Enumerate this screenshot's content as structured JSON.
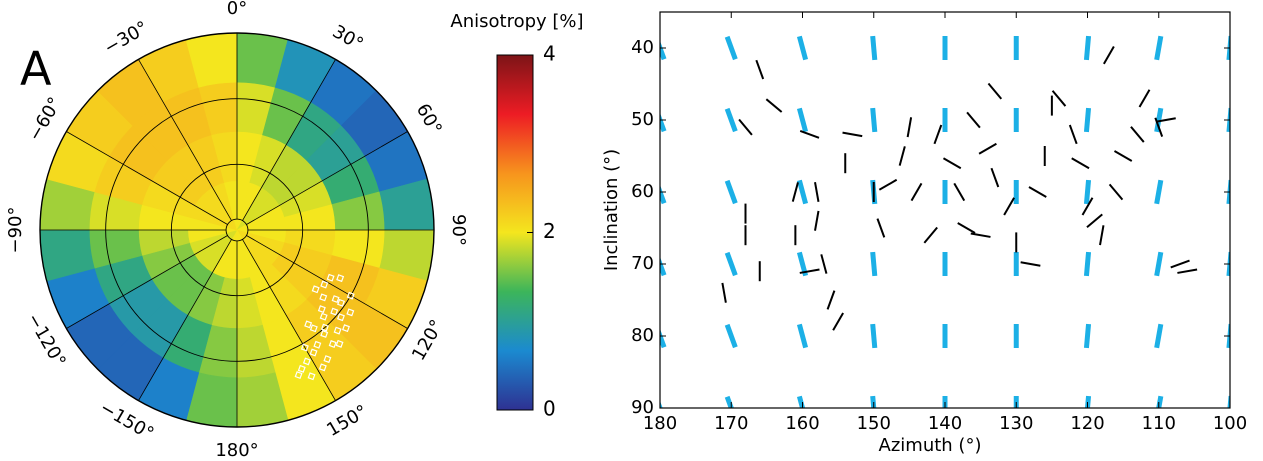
{
  "chart_data": [
    {
      "type": "polar_map",
      "panel_label": "A",
      "colorbar_title": "Anisotropy [%]",
      "clim": [
        0,
        4
      ],
      "cticks": [
        0,
        2,
        4
      ],
      "colormap": [
        "#2e3192",
        "#1b8ad0",
        "#3cb55a",
        "#f4e61e",
        "#f7941d",
        "#ed1c24",
        "#7d1417"
      ],
      "rlim": [
        0,
        90
      ],
      "rings": [
        5,
        30,
        60,
        90
      ],
      "azticks": [
        {
          "value": 0,
          "label": "0°"
        },
        {
          "value": 30,
          "label": "30°"
        },
        {
          "value": 60,
          "label": "60°"
        },
        {
          "value": 90,
          "label": "90°"
        },
        {
          "value": 120,
          "label": "120°"
        },
        {
          "value": 150,
          "label": "150°"
        },
        {
          "value": 180,
          "label": "180°"
        },
        {
          "value": -150,
          "label": "−150°"
        },
        {
          "value": -120,
          "label": "−120°"
        },
        {
          "value": -90,
          "label": "−90°"
        },
        {
          "value": -60,
          "label": "−60°"
        },
        {
          "value": -30,
          "label": "−30°"
        }
      ],
      "field": {
        "azimuth_edges": [
          -180,
          -165,
          -150,
          -135,
          -120,
          -105,
          -90,
          -75,
          -60,
          -45,
          -30,
          -15,
          0,
          15,
          30,
          45,
          60,
          75,
          90,
          105,
          120,
          135,
          150,
          165,
          180
        ],
        "inclination_edges": [
          0,
          22.5,
          45,
          67.5,
          90
        ],
        "values": [
          [
            2.0,
            2.0,
            1.9,
            1.9,
            1.9,
            2.0,
            2.0,
            2.1,
            2.1,
            2.1,
            2.1,
            2.0,
            2.0,
            2.0,
            1.9,
            1.9,
            2.0,
            2.0,
            2.0,
            2.1,
            2.1,
            2.1,
            2.0,
            2.0
          ],
          [
            1.8,
            1.6,
            1.5,
            1.5,
            1.6,
            1.8,
            2.0,
            2.1,
            2.2,
            2.2,
            2.2,
            2.1,
            2.0,
            1.9,
            1.8,
            1.8,
            1.9,
            2.0,
            2.1,
            2.2,
            2.2,
            2.1,
            2.0,
            1.9
          ],
          [
            1.6,
            1.2,
            0.9,
            0.9,
            1.1,
            1.5,
            1.9,
            2.2,
            2.3,
            2.3,
            2.3,
            2.2,
            1.9,
            1.5,
            1.1,
            1.0,
            1.2,
            1.6,
            2.0,
            2.3,
            2.3,
            2.2,
            2.0,
            1.8
          ],
          [
            1.5,
            0.6,
            0.4,
            0.4,
            0.6,
            1.1,
            1.7,
            2.1,
            2.2,
            2.3,
            2.2,
            2.0,
            1.5,
            0.8,
            0.5,
            0.4,
            0.5,
            1.0,
            1.8,
            2.2,
            2.3,
            2.2,
            2.0,
            1.7
          ]
        ]
      },
      "points": {
        "color": "#ffffff",
        "azimuth": [
          117,
          115,
          122,
          125,
          128,
          130,
          133,
          127,
          120,
          135,
          138,
          140,
          142,
          145,
          148,
          150,
          152,
          155,
          145,
          140,
          135,
          130,
          125,
          148,
          153,
          157,
          143,
          138,
          132,
          126
        ],
        "inclination": [
          48,
          52,
          47,
          55,
          50,
          58,
          53,
          45,
          60,
          56,
          60,
          62,
          57,
          64,
          66,
          62,
          68,
          70,
          72,
          68,
          65,
          62,
          58,
          74,
          75,
          72,
          54,
          70,
          67,
          64
        ]
      }
    },
    {
      "type": "stick",
      "xlabel": "Azimuth (°)",
      "ylabel": "Inclination (°)",
      "xlim": [
        180,
        100
      ],
      "ylim": [
        35,
        90
      ],
      "xticks": [
        180,
        170,
        160,
        150,
        140,
        130,
        120,
        110,
        100
      ],
      "yticks": [
        40,
        50,
        60,
        70,
        80,
        90
      ],
      "predicted": {
        "color": "#1cb0e6",
        "azimuth": [
          180,
          170,
          160,
          150,
          140,
          130,
          120,
          110,
          100
        ],
        "inclination": [
          40,
          50,
          60,
          70,
          80,
          90
        ],
        "orientation": [
          -20,
          -20,
          -15,
          -5,
          0,
          0,
          5,
          10,
          5
        ]
      },
      "observed": {
        "color": "#000000",
        "azimuth": [
          166,
          164,
          168,
          159,
          161,
          168,
          168,
          171,
          166,
          161,
          158,
          157,
          159,
          156,
          155,
          158,
          154,
          153,
          150,
          149,
          146,
          144,
          142,
          141,
          139,
          138,
          137,
          135,
          136,
          134,
          133,
          131,
          130,
          128,
          127,
          126,
          125,
          124,
          122,
          121,
          120,
          119,
          118,
          116,
          115,
          113,
          112,
          110,
          109,
          107,
          106,
          117,
          133,
          145,
          148
        ],
        "inclination": [
          43,
          48,
          51,
          52,
          60,
          63,
          66,
          74,
          71,
          66,
          64,
          70,
          71,
          75,
          78,
          60,
          56,
          52,
          60,
          65,
          55,
          60,
          66,
          52,
          56,
          60,
          65,
          66,
          50,
          54,
          58,
          62,
          67,
          70,
          60,
          55,
          48,
          47,
          52,
          56,
          62,
          64,
          66,
          60,
          55,
          52,
          47,
          51,
          50,
          70,
          71,
          41,
          46,
          51,
          59
        ],
        "orientation": [
          -20,
          -50,
          -40,
          -70,
          15,
          0,
          0,
          -10,
          0,
          0,
          10,
          -15,
          80,
          20,
          30,
          -10,
          0,
          -80,
          0,
          -20,
          15,
          30,
          40,
          20,
          -60,
          -30,
          -60,
          -80,
          -40,
          60,
          -20,
          30,
          0,
          -80,
          -60,
          0,
          0,
          -40,
          -20,
          -60,
          30,
          50,
          10,
          -40,
          -60,
          -40,
          30,
          -20,
          80,
          70,
          80,
          30,
          -40,
          10,
          60
        ]
      }
    }
  ]
}
